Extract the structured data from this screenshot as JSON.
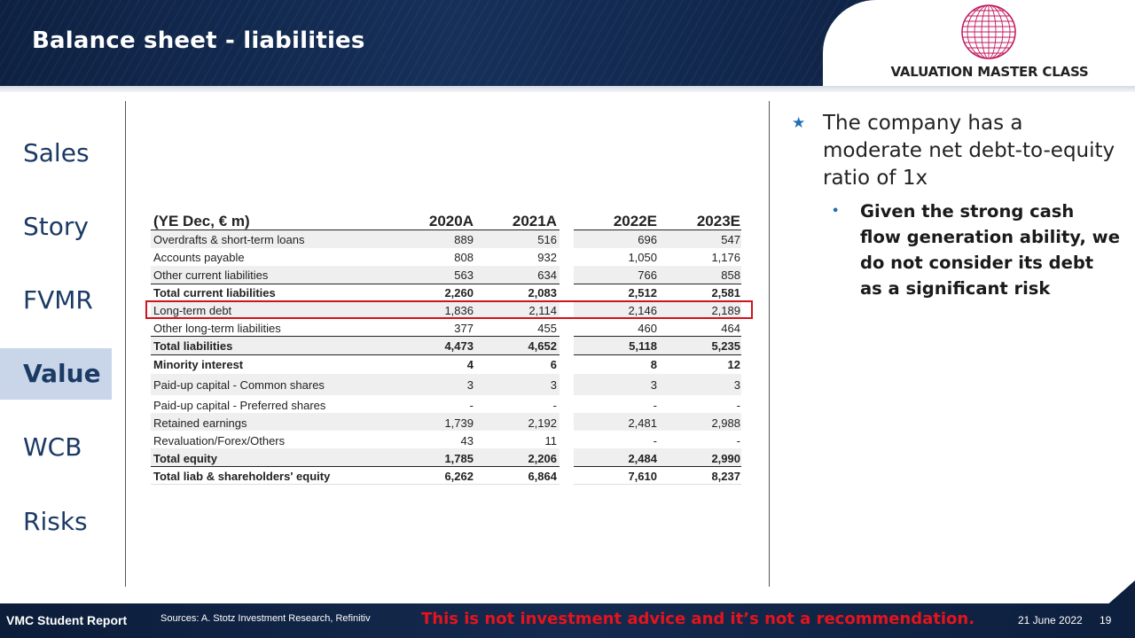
{
  "header": {
    "title": "Balance sheet - liabilities",
    "brand": "VALUATION MASTER CLASS"
  },
  "nav": {
    "items": [
      "Sales",
      "Story",
      "FVMR",
      "Value",
      "WCB",
      "Risks"
    ],
    "active": "Value"
  },
  "table": {
    "unit_label": "(YE Dec, € m)",
    "columns": [
      "2020A",
      "2021A",
      "2022E",
      "2023E"
    ],
    "rows": [
      {
        "label": "Overdrafts & short-term loans",
        "values": [
          "889",
          "516",
          "696",
          "547"
        ]
      },
      {
        "label": "Accounts payable",
        "values": [
          "808",
          "932",
          "1,050",
          "1,176"
        ]
      },
      {
        "label": "Other current liabilities",
        "values": [
          "563",
          "634",
          "766",
          "858"
        ]
      },
      {
        "label": "Total current liabilities",
        "values": [
          "2,260",
          "2,083",
          "2,512",
          "2,581"
        ]
      },
      {
        "label": "Long-term debt",
        "values": [
          "1,836",
          "2,114",
          "2,146",
          "2,189"
        ]
      },
      {
        "label": "Other long-term liabilities",
        "values": [
          "377",
          "455",
          "460",
          "464"
        ]
      },
      {
        "label": "Total liabilities",
        "values": [
          "4,473",
          "4,652",
          "5,118",
          "5,235"
        ]
      },
      {
        "label": "Minority interest",
        "values": [
          "4",
          "6",
          "8",
          "12"
        ]
      },
      {
        "label": "Paid-up capital - Common shares",
        "values": [
          "3",
          "3",
          "3",
          "3"
        ]
      },
      {
        "label": "Paid-up capital - Preferred shares",
        "values": [
          "-",
          "-",
          "-",
          "-"
        ]
      },
      {
        "label": "Retained earnings",
        "values": [
          "1,739",
          "2,192",
          "2,481",
          "2,988"
        ]
      },
      {
        "label": "Revaluation/Forex/Others",
        "values": [
          "43",
          "11",
          "-",
          "-"
        ]
      },
      {
        "label": "Total equity",
        "values": [
          "1,785",
          "2,206",
          "2,484",
          "2,990"
        ]
      },
      {
        "label": "Total liab & shareholders' equity",
        "values": [
          "6,262",
          "6,864",
          "7,610",
          "8,237"
        ]
      }
    ],
    "highlighted_row": "Long-term debt",
    "highlight_color": "#d0141b"
  },
  "commentary": {
    "main": "The company has a moderate net debt-to-equity ratio of 1x",
    "sub": "Given the strong cash flow generation ability, we do not consider its debt as a significant risk"
  },
  "footer": {
    "report": "VMC Student Report",
    "sources": "Sources: A. Stotz Investment Research, Refinitiv",
    "disclaimer": "This is not investment advice and it’s not a recommendation.",
    "date": "21 June 2022",
    "page": "19"
  },
  "colors": {
    "navy": "#0f2447",
    "nav_text": "#1b3a64",
    "active_bg": "#c9d6ea",
    "bullet_blue": "#1f6fb3",
    "warning_red": "#e5131c"
  }
}
